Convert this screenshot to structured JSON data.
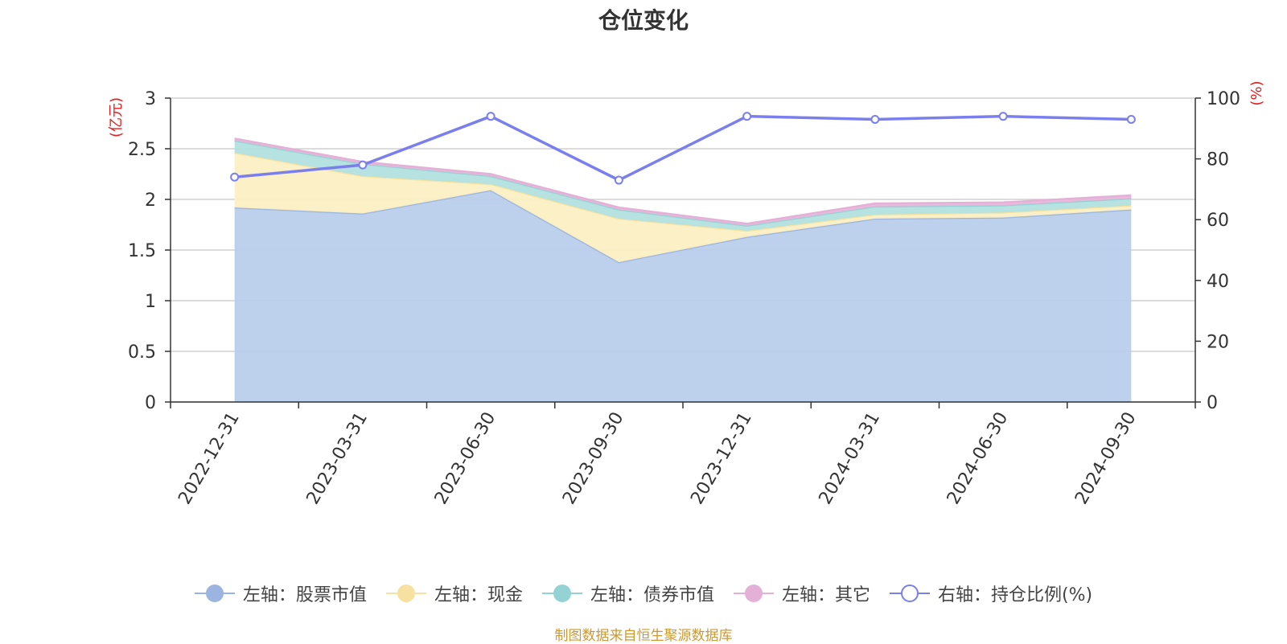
{
  "title": "仓位变化",
  "source_note": "制图数据来自恒生聚源数据库",
  "chart_data": {
    "type": "area",
    "title": "仓位变化",
    "categories": [
      "2022-12-31",
      "2023-03-31",
      "2023-06-30",
      "2023-09-30",
      "2023-12-31",
      "2024-03-31",
      "2024-06-30",
      "2024-09-30"
    ],
    "y_left": {
      "label": "(亿元)",
      "min": 0,
      "max": 3,
      "ticks": [
        "0",
        "0.5",
        "1",
        "1.5",
        "2",
        "2.5",
        "3"
      ]
    },
    "y_right": {
      "label": "(%)",
      "min": 0,
      "max": 100,
      "ticks": [
        "0",
        "20",
        "40",
        "60",
        "80",
        "100"
      ]
    },
    "stacked_series": [
      {
        "name": "左轴：股票市值",
        "axis": "left",
        "color": "#9bb5e0",
        "fill": "#b9cdeb",
        "values": [
          1.92,
          1.86,
          2.09,
          1.38,
          1.63,
          1.81,
          1.82,
          1.9
        ]
      },
      {
        "name": "左轴：现金",
        "axis": "left",
        "color": "#f7e1a0",
        "fill": "#fbefc3",
        "values": [
          0.54,
          0.37,
          0.06,
          0.43,
          0.06,
          0.04,
          0.05,
          0.04
        ]
      },
      {
        "name": "左轴：债券市值",
        "axis": "left",
        "color": "#93d3d3",
        "fill": "#b2e0df",
        "values": [
          0.12,
          0.12,
          0.08,
          0.09,
          0.05,
          0.08,
          0.07,
          0.07
        ]
      },
      {
        "name": "左轴：其它",
        "axis": "left",
        "color": "#e5b0d8",
        "fill": "#eab6da",
        "values": [
          0.02,
          0.02,
          0.02,
          0.02,
          0.02,
          0.03,
          0.03,
          0.03
        ]
      }
    ],
    "line_series": [
      {
        "name": "右轴：持仓比例(%)",
        "axis": "right",
        "color": "#7b7fee",
        "values": [
          74,
          78,
          94,
          73,
          94,
          93,
          94,
          93
        ]
      }
    ],
    "grid": true,
    "legend_position": "bottom"
  }
}
